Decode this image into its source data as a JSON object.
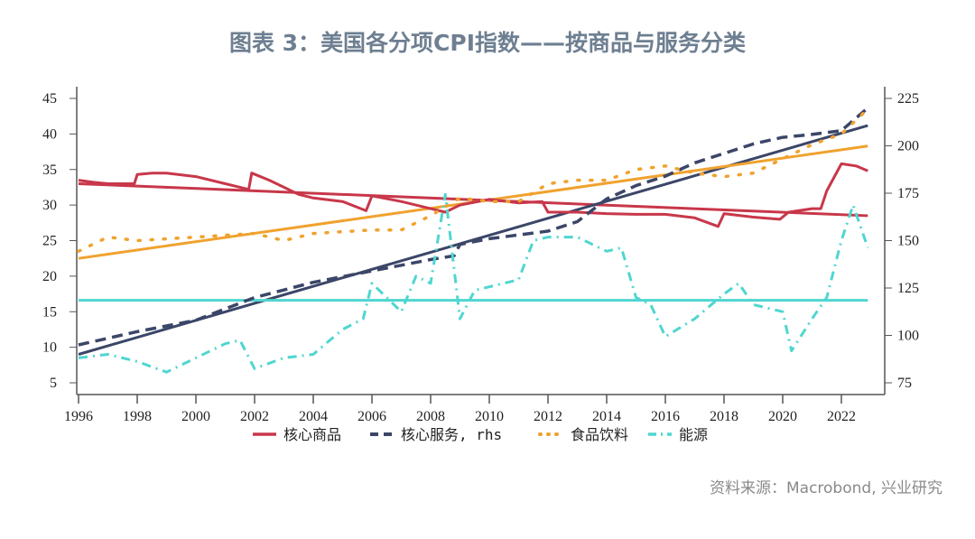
{
  "title": "图表 3：美国各分项CPI指数——按商品与服务分类",
  "source": "资料来源：Macrobond, 兴业研究",
  "chart_data": {
    "type": "line",
    "title": "图表 3：美国各分项CPI指数——按商品与服务分类",
    "xlim": [
      1996,
      2023
    ],
    "x_ticks": [
      "1996",
      "1998",
      "2000",
      "2002",
      "2004",
      "2006",
      "2008",
      "2010",
      "2012",
      "2014",
      "2016",
      "2018",
      "2020",
      "2022"
    ],
    "ylim_left": [
      5,
      45
    ],
    "y_ticks_left": [
      "5",
      "10",
      "15",
      "20",
      "25",
      "30",
      "35",
      "40",
      "45"
    ],
    "ylim_right": [
      75,
      225
    ],
    "y_ticks_right": [
      "75",
      "100",
      "125",
      "150",
      "175",
      "200",
      "225"
    ],
    "grid": false,
    "legend_position": "bottom",
    "colors": {
      "core_goods": "#c8374a",
      "core_services": "#3b4668",
      "food": "#f0a22e",
      "energy": "#4fd6d0"
    },
    "series": [
      {
        "name": "核心商品",
        "axis": "left",
        "style": "solid",
        "color": "#c8374a",
        "x": [
          1996,
          1996.5,
          1997,
          1997.9,
          1998,
          1998.5,
          1999,
          2000,
          2001,
          2001.8,
          2001.9,
          2002.5,
          2003,
          2003.5,
          2004,
          2005,
          2005.8,
          2006,
          2007,
          2008,
          2008.5,
          2009,
          2010,
          2011,
          2011.8,
          2012,
          2013,
          2014,
          2015,
          2016,
          2017,
          2017.8,
          2018,
          2019,
          2019.9,
          2020.2,
          2021,
          2021.3,
          2021.5,
          2022,
          2022.5,
          2022.9
        ],
        "y": [
          33.5,
          33.2,
          33.0,
          33.0,
          34.3,
          34.5,
          34.5,
          34.0,
          33.0,
          32.2,
          34.5,
          33.5,
          32.5,
          31.5,
          31.0,
          30.5,
          29.2,
          31.3,
          30.5,
          29.5,
          29.0,
          30.0,
          30.8,
          30.3,
          30.5,
          29.0,
          29.0,
          28.8,
          28.7,
          28.7,
          28.2,
          27.0,
          28.8,
          28.3,
          28.0,
          29.0,
          29.5,
          29.5,
          32.0,
          35.8,
          35.5,
          34.8
        ]
      },
      {
        "name": "核心服务, rhs",
        "axis": "right",
        "style": "dashed",
        "color": "#3b4668",
        "x": [
          1996,
          1998,
          2000,
          2002,
          2004,
          2006,
          2008,
          2008.8,
          2009,
          2010,
          2012,
          2013,
          2014,
          2015,
          2016,
          2017,
          2018,
          2019,
          2020,
          2021,
          2022,
          2022.9
        ],
        "y": [
          95,
          102,
          108,
          120,
          128,
          134,
          140,
          142,
          148,
          151,
          155,
          160,
          172,
          179,
          184,
          191,
          196,
          201,
          204.5,
          206,
          208,
          220
        ]
      },
      {
        "name": "食品饮料",
        "axis": "left",
        "style": "dotted",
        "color": "#f0a22e",
        "x": [
          1996,
          1997,
          1998,
          2000,
          2002,
          2003,
          2004,
          2006,
          2007,
          2008,
          2009,
          2010,
          2011,
          2012,
          2013,
          2014,
          2015,
          2016,
          2017,
          2018,
          2019,
          2020,
          2021,
          2022,
          2022.9
        ],
        "y": [
          23.5,
          25.5,
          25,
          25.5,
          26,
          25,
          26,
          26.5,
          26.5,
          28.5,
          31,
          30.5,
          30.5,
          33,
          33.5,
          33.5,
          35,
          35.5,
          34.5,
          34,
          34.5,
          36.5,
          38.5,
          40,
          43.5
        ]
      },
      {
        "name": "能源",
        "axis": "left",
        "style": "dashdot",
        "color": "#4fd6d0",
        "x": [
          1996,
          1997,
          1998,
          1999,
          2000,
          2001,
          2001.5,
          2002,
          2003,
          2004,
          2005,
          2005.7,
          2006,
          2006.5,
          2007,
          2007.5,
          2008,
          2008.5,
          2009,
          2009.5,
          2010,
          2011,
          2011.5,
          2012,
          2013,
          2014,
          2014.5,
          2015,
          2015.5,
          2016,
          2017,
          2018,
          2018.5,
          2019,
          2020,
          2020.3,
          2021,
          2021.5,
          2022,
          2022.4,
          2022.9
        ],
        "y": [
          8.5,
          9,
          8,
          6.5,
          8.5,
          10.5,
          11,
          7,
          8.5,
          9,
          12.5,
          14,
          19,
          17,
          15,
          20,
          19,
          31.5,
          14,
          18,
          18.5,
          19.5,
          25,
          25.5,
          25.5,
          23.5,
          24,
          17,
          16,
          11.5,
          14,
          17.5,
          19,
          16,
          15,
          9.5,
          14,
          17,
          25,
          30,
          24
        ]
      }
    ],
    "trend_lines": [
      {
        "series": "核心商品",
        "axis": "left",
        "x": [
          1996,
          2022.9
        ],
        "y": [
          33.0,
          28.5
        ],
        "color": "#c8374a"
      },
      {
        "series": "核心服务, rhs",
        "axis": "right",
        "x": [
          1996,
          2022.9
        ],
        "y": [
          90,
          210.7
        ],
        "color": "#3b4668"
      },
      {
        "series": "食品饮料",
        "axis": "left",
        "x": [
          1996,
          2022.9
        ],
        "y": [
          22.5,
          38.3
        ],
        "color": "#f0a22e"
      },
      {
        "series": "能源",
        "axis": "left",
        "x": [
          1996,
          2022.9
        ],
        "y": [
          16.6,
          16.6
        ],
        "color": "#4fd6d0"
      }
    ]
  }
}
